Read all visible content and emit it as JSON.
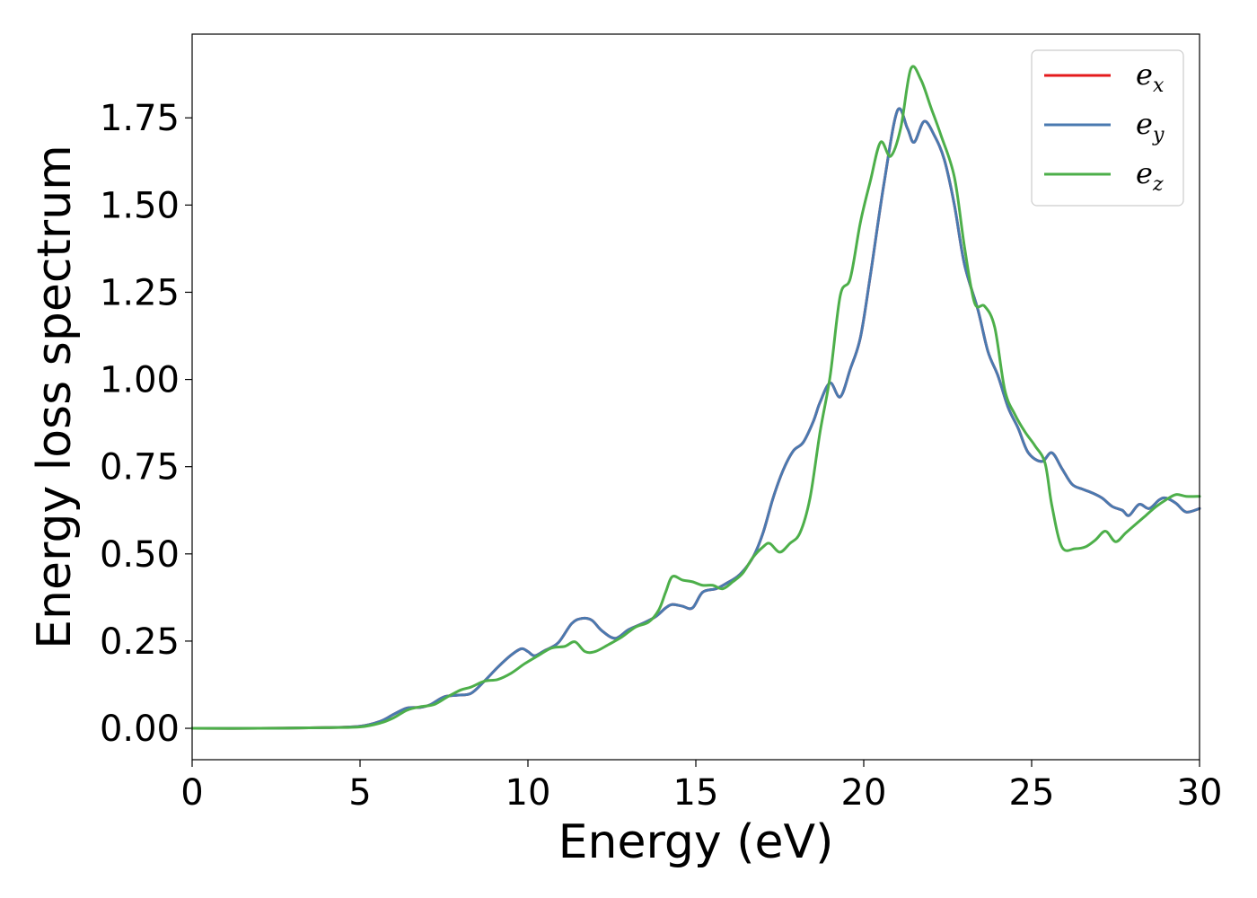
{
  "chart_data": {
    "type": "line",
    "title": "",
    "xlabel": "Energy (eV)",
    "ylabel": "Energy loss spectrum",
    "xlim": [
      0,
      30
    ],
    "ylim": [
      -0.09,
      1.99
    ],
    "x_ticks": [
      0,
      5,
      10,
      15,
      20,
      25,
      30
    ],
    "x_tick_labels": [
      "0",
      "5",
      "10",
      "15",
      "20",
      "25",
      "30"
    ],
    "y_ticks": [
      0.0,
      0.25,
      0.5,
      0.75,
      1.0,
      1.25,
      1.5,
      1.75
    ],
    "y_tick_labels": [
      "0.00",
      "0.25",
      "0.50",
      "0.75",
      "1.00",
      "1.25",
      "1.50",
      "1.75"
    ],
    "grid": false,
    "legend_position": "top-right",
    "series": [
      {
        "name": "e",
        "subscript": "x",
        "color": "#e41a1c",
        "points": [
          [
            0,
            0
          ],
          [
            2,
            0
          ],
          [
            4,
            0.002
          ],
          [
            5,
            0.006
          ],
          [
            5.6,
            0.02
          ],
          [
            6,
            0.04
          ],
          [
            6.4,
            0.058
          ],
          [
            6.8,
            0.06
          ],
          [
            7.1,
            0.068
          ],
          [
            7.5,
            0.09
          ],
          [
            7.9,
            0.095
          ],
          [
            8.3,
            0.1
          ],
          [
            8.7,
            0.135
          ],
          [
            9.1,
            0.175
          ],
          [
            9.5,
            0.21
          ],
          [
            9.8,
            0.228
          ],
          [
            10,
            0.22
          ],
          [
            10.2,
            0.208
          ],
          [
            10.5,
            0.223
          ],
          [
            10.9,
            0.245
          ],
          [
            11.3,
            0.3
          ],
          [
            11.6,
            0.315
          ],
          [
            11.9,
            0.31
          ],
          [
            12.2,
            0.28
          ],
          [
            12.6,
            0.258
          ],
          [
            13,
            0.283
          ],
          [
            13.4,
            0.3
          ],
          [
            13.8,
            0.32
          ],
          [
            14.1,
            0.345
          ],
          [
            14.3,
            0.355
          ],
          [
            14.6,
            0.35
          ],
          [
            14.9,
            0.345
          ],
          [
            15.2,
            0.39
          ],
          [
            15.6,
            0.4
          ],
          [
            15.9,
            0.415
          ],
          [
            16.3,
            0.44
          ],
          [
            16.7,
            0.49
          ],
          [
            17,
            0.56
          ],
          [
            17.3,
            0.66
          ],
          [
            17.6,
            0.74
          ],
          [
            17.9,
            0.795
          ],
          [
            18.2,
            0.82
          ],
          [
            18.5,
            0.88
          ],
          [
            18.7,
            0.935
          ],
          [
            19,
            0.99
          ],
          [
            19.3,
            0.95
          ],
          [
            19.6,
            1.03
          ],
          [
            19.9,
            1.12
          ],
          [
            20.2,
            1.3
          ],
          [
            20.6,
            1.56
          ],
          [
            21,
            1.77
          ],
          [
            21.3,
            1.72
          ],
          [
            21.5,
            1.68
          ],
          [
            21.8,
            1.74
          ],
          [
            22.1,
            1.7
          ],
          [
            22.4,
            1.63
          ],
          [
            22.7,
            1.5
          ],
          [
            23,
            1.33
          ],
          [
            23.4,
            1.2
          ],
          [
            23.7,
            1.08
          ],
          [
            24,
            1.01
          ],
          [
            24.3,
            0.92
          ],
          [
            24.6,
            0.86
          ],
          [
            24.9,
            0.79
          ],
          [
            25.3,
            0.765
          ],
          [
            25.6,
            0.79
          ],
          [
            25.9,
            0.745
          ],
          [
            26.2,
            0.7
          ],
          [
            26.5,
            0.686
          ],
          [
            26.8,
            0.675
          ],
          [
            27.1,
            0.66
          ],
          [
            27.4,
            0.636
          ],
          [
            27.7,
            0.625
          ],
          [
            27.9,
            0.61
          ],
          [
            28.2,
            0.642
          ],
          [
            28.5,
            0.63
          ],
          [
            28.8,
            0.655
          ],
          [
            29,
            0.66
          ],
          [
            29.3,
            0.645
          ],
          [
            29.6,
            0.62
          ],
          [
            30,
            0.63
          ]
        ]
      },
      {
        "name": "e",
        "subscript": "y",
        "color": "#4a7ab0",
        "points": [
          [
            0,
            0
          ],
          [
            2,
            0
          ],
          [
            4,
            0.002
          ],
          [
            5,
            0.006
          ],
          [
            5.6,
            0.02
          ],
          [
            6,
            0.04
          ],
          [
            6.4,
            0.058
          ],
          [
            6.8,
            0.06
          ],
          [
            7.1,
            0.068
          ],
          [
            7.5,
            0.09
          ],
          [
            7.9,
            0.095
          ],
          [
            8.3,
            0.1
          ],
          [
            8.7,
            0.135
          ],
          [
            9.1,
            0.175
          ],
          [
            9.5,
            0.21
          ],
          [
            9.8,
            0.228
          ],
          [
            10,
            0.22
          ],
          [
            10.2,
            0.208
          ],
          [
            10.5,
            0.223
          ],
          [
            10.9,
            0.245
          ],
          [
            11.3,
            0.3
          ],
          [
            11.6,
            0.315
          ],
          [
            11.9,
            0.31
          ],
          [
            12.2,
            0.28
          ],
          [
            12.6,
            0.258
          ],
          [
            13,
            0.283
          ],
          [
            13.4,
            0.3
          ],
          [
            13.8,
            0.32
          ],
          [
            14.1,
            0.345
          ],
          [
            14.3,
            0.355
          ],
          [
            14.6,
            0.35
          ],
          [
            14.9,
            0.345
          ],
          [
            15.2,
            0.39
          ],
          [
            15.6,
            0.4
          ],
          [
            15.9,
            0.415
          ],
          [
            16.3,
            0.44
          ],
          [
            16.7,
            0.49
          ],
          [
            17,
            0.56
          ],
          [
            17.3,
            0.66
          ],
          [
            17.6,
            0.74
          ],
          [
            17.9,
            0.795
          ],
          [
            18.2,
            0.82
          ],
          [
            18.5,
            0.88
          ],
          [
            18.7,
            0.935
          ],
          [
            19,
            0.99
          ],
          [
            19.3,
            0.95
          ],
          [
            19.6,
            1.03
          ],
          [
            19.9,
            1.12
          ],
          [
            20.2,
            1.3
          ],
          [
            20.6,
            1.56
          ],
          [
            21,
            1.77
          ],
          [
            21.3,
            1.72
          ],
          [
            21.5,
            1.68
          ],
          [
            21.8,
            1.74
          ],
          [
            22.1,
            1.7
          ],
          [
            22.4,
            1.63
          ],
          [
            22.7,
            1.5
          ],
          [
            23,
            1.33
          ],
          [
            23.4,
            1.2
          ],
          [
            23.7,
            1.08
          ],
          [
            24,
            1.01
          ],
          [
            24.3,
            0.92
          ],
          [
            24.6,
            0.86
          ],
          [
            24.9,
            0.79
          ],
          [
            25.3,
            0.765
          ],
          [
            25.6,
            0.79
          ],
          [
            25.9,
            0.745
          ],
          [
            26.2,
            0.7
          ],
          [
            26.5,
            0.686
          ],
          [
            26.8,
            0.675
          ],
          [
            27.1,
            0.66
          ],
          [
            27.4,
            0.636
          ],
          [
            27.7,
            0.625
          ],
          [
            27.9,
            0.61
          ],
          [
            28.2,
            0.642
          ],
          [
            28.5,
            0.63
          ],
          [
            28.8,
            0.655
          ],
          [
            29,
            0.66
          ],
          [
            29.3,
            0.645
          ],
          [
            29.6,
            0.62
          ],
          [
            30,
            0.63
          ]
        ]
      },
      {
        "name": "e",
        "subscript": "z",
        "color": "#4daf4a",
        "points": [
          [
            0,
            0
          ],
          [
            2,
            0
          ],
          [
            4,
            0.002
          ],
          [
            5,
            0.004
          ],
          [
            5.6,
            0.015
          ],
          [
            6,
            0.03
          ],
          [
            6.4,
            0.052
          ],
          [
            6.8,
            0.062
          ],
          [
            7.2,
            0.068
          ],
          [
            7.6,
            0.09
          ],
          [
            8,
            0.11
          ],
          [
            8.3,
            0.118
          ],
          [
            8.7,
            0.135
          ],
          [
            9.1,
            0.14
          ],
          [
            9.5,
            0.158
          ],
          [
            9.9,
            0.185
          ],
          [
            10.3,
            0.208
          ],
          [
            10.7,
            0.23
          ],
          [
            11.1,
            0.235
          ],
          [
            11.4,
            0.248
          ],
          [
            11.7,
            0.22
          ],
          [
            12,
            0.22
          ],
          [
            12.4,
            0.24
          ],
          [
            12.8,
            0.262
          ],
          [
            13.2,
            0.29
          ],
          [
            13.6,
            0.305
          ],
          [
            13.9,
            0.34
          ],
          [
            14.1,
            0.39
          ],
          [
            14.3,
            0.435
          ],
          [
            14.6,
            0.425
          ],
          [
            14.9,
            0.42
          ],
          [
            15.2,
            0.41
          ],
          [
            15.5,
            0.41
          ],
          [
            15.8,
            0.4
          ],
          [
            16.1,
            0.42
          ],
          [
            16.4,
            0.445
          ],
          [
            16.7,
            0.49
          ],
          [
            17,
            0.52
          ],
          [
            17.2,
            0.53
          ],
          [
            17.5,
            0.505
          ],
          [
            17.8,
            0.53
          ],
          [
            18.1,
            0.56
          ],
          [
            18.4,
            0.66
          ],
          [
            18.7,
            0.85
          ],
          [
            19,
            1.01
          ],
          [
            19.3,
            1.24
          ],
          [
            19.6,
            1.29
          ],
          [
            19.9,
            1.45
          ],
          [
            20.2,
            1.57
          ],
          [
            20.5,
            1.68
          ],
          [
            20.8,
            1.64
          ],
          [
            21.1,
            1.72
          ],
          [
            21.4,
            1.89
          ],
          [
            21.7,
            1.86
          ],
          [
            22,
            1.78
          ],
          [
            22.3,
            1.7
          ],
          [
            22.7,
            1.58
          ],
          [
            23,
            1.38
          ],
          [
            23.3,
            1.22
          ],
          [
            23.6,
            1.21
          ],
          [
            23.9,
            1.15
          ],
          [
            24.2,
            0.97
          ],
          [
            24.5,
            0.9
          ],
          [
            24.8,
            0.85
          ],
          [
            25.1,
            0.81
          ],
          [
            25.4,
            0.76
          ],
          [
            25.6,
            0.64
          ],
          [
            25.9,
            0.52
          ],
          [
            26.3,
            0.515
          ],
          [
            26.6,
            0.52
          ],
          [
            26.9,
            0.54
          ],
          [
            27.2,
            0.565
          ],
          [
            27.5,
            0.535
          ],
          [
            27.8,
            0.56
          ],
          [
            28.1,
            0.585
          ],
          [
            28.4,
            0.61
          ],
          [
            28.7,
            0.635
          ],
          [
            29,
            0.655
          ],
          [
            29.3,
            0.67
          ],
          [
            29.6,
            0.665
          ],
          [
            30,
            0.665
          ]
        ]
      }
    ]
  }
}
